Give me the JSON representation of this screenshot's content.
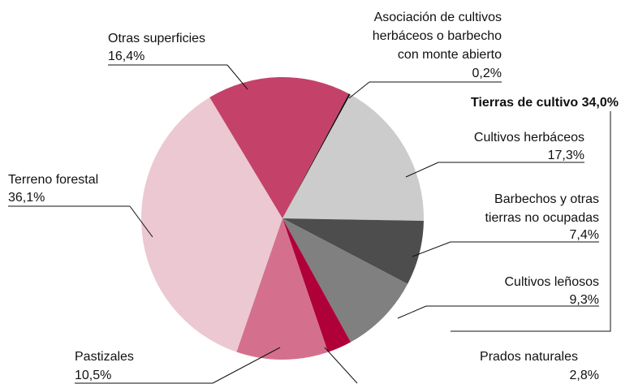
{
  "chart_data": {
    "type": "pie",
    "categories": [
      [
        "Asociación de cultivos",
        "herbáceos o barbecho",
        "con monte abierto"
      ],
      [
        "Cultivos herbáceos"
      ],
      [
        "Barbechos y otras",
        "tierras no ocupadas"
      ],
      [
        "Cultivos leñosos"
      ],
      [
        "Prados naturales"
      ],
      [
        "Pastizales"
      ],
      [
        "Terreno forestal"
      ],
      [
        "Otras superficies"
      ]
    ],
    "values": [
      0.2,
      17.3,
      7.4,
      9.3,
      2.8,
      10.5,
      36.1,
      16.4
    ],
    "value_labels": [
      "0,2%",
      "17,3%",
      "7,4%",
      "9,3%",
      "2,8%",
      "10,5%",
      " 36,1%",
      "16,4%"
    ],
    "colors": [
      "#111111",
      "#cccccc",
      "#4d4d4d",
      "#808080",
      "#b0003a",
      "#d4708e",
      "#ecc8d2",
      "#c4426a"
    ],
    "annotation": "Tierras de cultivo 34,0%"
  }
}
